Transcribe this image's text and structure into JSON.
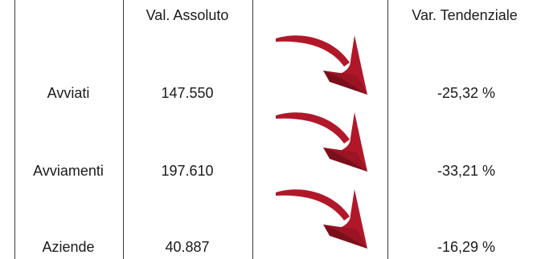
{
  "header": {
    "abs_value": "Val. Assoluto",
    "trend_var": "Var. Tendenziale"
  },
  "rows": [
    {
      "label": "Avviati",
      "value": "147.550",
      "trend": "-25,32 %",
      "trend_icon": "down-arrow-icon"
    },
    {
      "label": "Avviamenti",
      "value": "197.610",
      "trend": "-33,21 %",
      "trend_icon": "down-arrow-icon"
    },
    {
      "label": "Aziende",
      "value": "40.887",
      "trend": "-16,29 %",
      "trend_icon": "down-arrow-icon"
    }
  ],
  "colors": {
    "arrow": "#b0182a",
    "arrow_shadow": "#7a0f1c"
  }
}
